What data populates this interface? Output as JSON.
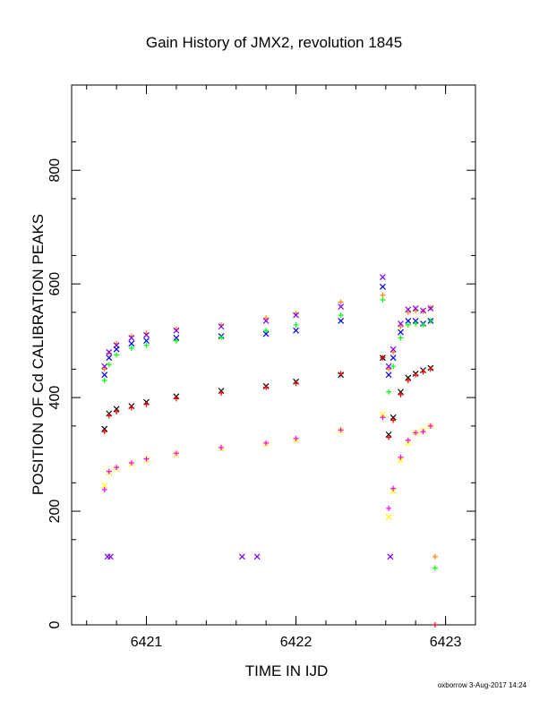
{
  "chart_data": {
    "type": "scatter",
    "title": "Gain History of JMX2, revolution 1845",
    "xlabel": "TIME IN IJD",
    "ylabel": "POSITION OF Cd CALIBRATION PEAKS",
    "xlim": [
      6420.5,
      6423.2
    ],
    "ylim": [
      0,
      950
    ],
    "x_ticks": [
      6421,
      6422,
      6423
    ],
    "y_ticks": [
      0,
      200,
      400,
      600,
      800
    ],
    "x_ticklabels": [
      "6421",
      "6422",
      "6423"
    ],
    "y_ticklabels": [
      "0",
      "200",
      "400",
      "600",
      "800"
    ],
    "grid": false,
    "legend": "none",
    "series": [
      {
        "color": "#ff8000",
        "marker": "plus",
        "x": [
          6420.72,
          6420.75,
          6420.8,
          6420.9,
          6421.0,
          6421.2,
          6421.5,
          6421.8,
          6422.0,
          6422.3,
          6422.58,
          6422.62,
          6422.65,
          6422.7,
          6422.75,
          6422.8,
          6422.85,
          6422.9
        ],
        "values": [
          450,
          478,
          495,
          508,
          513,
          520,
          528,
          540,
          548,
          568,
          580,
          450,
          480,
          525,
          550,
          553,
          552,
          558
        ]
      },
      {
        "color": "#7f00ff",
        "marker": "cross",
        "x": [
          6420.72,
          6420.75,
          6420.8,
          6420.9,
          6421.0,
          6421.2,
          6421.5,
          6421.8,
          6422.0,
          6422.3,
          6422.58,
          6422.62,
          6422.65,
          6422.7,
          6422.75,
          6422.8,
          6422.85,
          6422.9
        ],
        "values": [
          455,
          480,
          492,
          505,
          510,
          518,
          525,
          535,
          545,
          560,
          612,
          455,
          485,
          530,
          555,
          557,
          553,
          557
        ]
      },
      {
        "color": "#0000ff",
        "marker": "cross",
        "x": [
          6420.72,
          6420.75,
          6420.8,
          6420.9,
          6421.0,
          6421.2,
          6421.5,
          6421.8,
          6422.0,
          6422.3,
          6422.58,
          6422.62,
          6422.65,
          6422.7,
          6422.75,
          6422.8,
          6422.85,
          6422.9
        ],
        "values": [
          440,
          470,
          485,
          495,
          500,
          505,
          508,
          512,
          518,
          535,
          595,
          440,
          470,
          515,
          535,
          535,
          530,
          535
        ]
      },
      {
        "color": "#00ff00",
        "marker": "plus",
        "x": [
          6420.72,
          6420.75,
          6420.8,
          6420.9,
          6421.0,
          6421.2,
          6421.5,
          6421.8,
          6422.0,
          6422.3,
          6422.58,
          6422.62,
          6422.65,
          6422.7,
          6422.75,
          6422.8,
          6422.85,
          6422.9
        ],
        "values": [
          430,
          458,
          475,
          487,
          492,
          500,
          506,
          518,
          528,
          545,
          572,
          410,
          455,
          505,
          528,
          530,
          528,
          535
        ]
      },
      {
        "color": "#000000",
        "marker": "cross",
        "x": [
          6420.72,
          6420.75,
          6420.8,
          6420.9,
          6421.0,
          6421.2,
          6421.5,
          6421.8,
          6422.0,
          6422.3,
          6422.58,
          6422.62,
          6422.65,
          6422.7,
          6422.75,
          6422.8,
          6422.85,
          6422.9
        ],
        "values": [
          345,
          372,
          380,
          385,
          392,
          402,
          412,
          420,
          428,
          440,
          470,
          335,
          365,
          410,
          435,
          442,
          448,
          452
        ]
      },
      {
        "color": "#ff0000",
        "marker": "plus",
        "x": [
          6420.72,
          6420.75,
          6420.8,
          6420.9,
          6421.0,
          6421.2,
          6421.5,
          6421.8,
          6422.0,
          6422.3,
          6422.58,
          6422.62,
          6422.65,
          6422.7,
          6422.75,
          6422.8,
          6422.85,
          6422.9
        ],
        "values": [
          340,
          368,
          375,
          382,
          388,
          398,
          408,
          418,
          425,
          442,
          470,
          330,
          360,
          405,
          430,
          440,
          445,
          450
        ]
      },
      {
        "color": "#ffff00",
        "marker": "cross",
        "x": [
          6420.72,
          6420.75,
          6420.8,
          6420.9,
          6421.0,
          6421.2,
          6421.5,
          6421.8,
          6422.0,
          6422.3,
          6422.58,
          6422.62,
          6422.65,
          6422.7,
          6422.75,
          6422.8,
          6422.85,
          6422.9
        ],
        "values": [
          245,
          268,
          275,
          283,
          290,
          300,
          310,
          318,
          325,
          342,
          370,
          190,
          235,
          290,
          320,
          338,
          342,
          350
        ]
      },
      {
        "color": "#ff00ff",
        "marker": "plus",
        "x": [
          6420.72,
          6420.75,
          6420.8,
          6420.9,
          6421.0,
          6421.2,
          6421.5,
          6421.8,
          6422.0,
          6422.3,
          6422.58,
          6422.62,
          6422.65,
          6422.7,
          6422.75,
          6422.8,
          6422.85,
          6422.9
        ],
        "values": [
          238,
          270,
          277,
          285,
          292,
          302,
          312,
          320,
          328,
          343,
          365,
          205,
          240,
          295,
          325,
          338,
          340,
          350
        ]
      }
    ],
    "outliers": [
      {
        "color": "#7f00ff",
        "marker": "cross",
        "x": 6420.74,
        "y": 120
      },
      {
        "color": "#7f00ff",
        "marker": "cross",
        "x": 6420.76,
        "y": 120
      },
      {
        "color": "#7f00ff",
        "marker": "cross",
        "x": 6421.64,
        "y": 120
      },
      {
        "color": "#7f00ff",
        "marker": "cross",
        "x": 6421.74,
        "y": 120
      },
      {
        "color": "#7f00ff",
        "marker": "cross",
        "x": 6422.63,
        "y": 120
      },
      {
        "color": "#ff8000",
        "marker": "plus",
        "x": 6422.93,
        "y": 120
      },
      {
        "color": "#00ff00",
        "marker": "plus",
        "x": 6422.93,
        "y": 100
      },
      {
        "color": "#ff0000",
        "marker": "plus",
        "x": 6422.93,
        "y": 0
      }
    ]
  },
  "footer": "oxborrow  3-Aug-2017 14:24"
}
